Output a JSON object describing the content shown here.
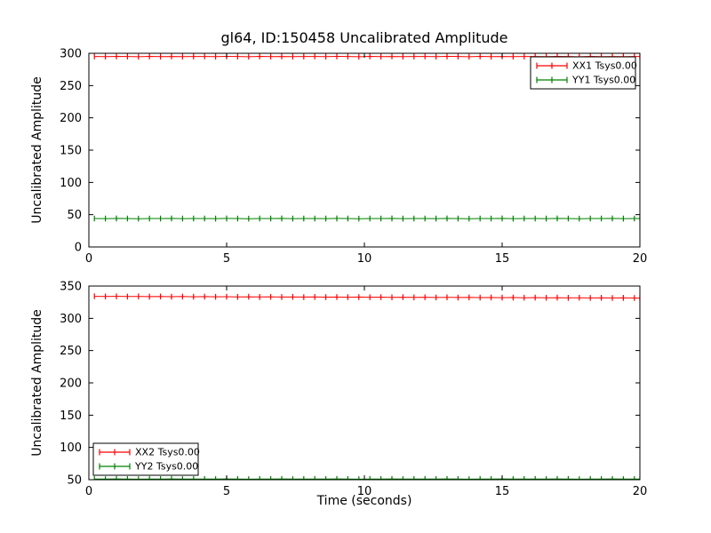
{
  "figure": {
    "title": "gl64, ID:150458 Uncalibrated Amplitude",
    "background": "#ffffff",
    "axis_color": "#000000"
  },
  "chart_data": [
    {
      "type": "line",
      "subplot": "top",
      "title": "gl64, ID:150458 Uncalibrated Amplitude",
      "xlabel": "",
      "ylabel": "Uncalibrated Amplitude",
      "xlim": [
        0,
        20
      ],
      "ylim": [
        0,
        300
      ],
      "xticks": [
        0,
        5,
        10,
        15,
        20
      ],
      "yticks": [
        0,
        50,
        100,
        150,
        200,
        250,
        300
      ],
      "grid": false,
      "error_bars": true,
      "yerr": 4.5,
      "legend_position": "upper-right",
      "x": [
        0.2,
        0.6,
        1.0,
        1.4,
        1.8,
        2.2,
        2.6,
        3.0,
        3.4,
        3.8,
        4.2,
        4.6,
        5.0,
        5.4,
        5.8,
        6.2,
        6.6,
        7.0,
        7.4,
        7.8,
        8.2,
        8.6,
        9.0,
        9.4,
        9.8,
        10.2,
        10.6,
        11.0,
        11.4,
        11.8,
        12.2,
        12.6,
        13.0,
        13.4,
        13.8,
        14.2,
        14.6,
        15.0,
        15.4,
        15.8,
        16.2,
        16.6,
        17.0,
        17.4,
        17.8,
        18.2,
        18.6,
        19.0,
        19.4,
        19.8,
        20.0
      ],
      "series": [
        {
          "name": "XX1 Tsys0.00",
          "color": "#ff0000",
          "values": [
            295.1,
            294.8,
            295.2,
            295.0,
            294.7,
            295.2,
            294.9,
            295.1,
            294.8,
            295.0,
            295.1,
            294.8,
            295.2,
            295.0,
            294.7,
            295.2,
            294.9,
            295.1,
            294.8,
            295.0,
            295.1,
            294.8,
            295.2,
            295.0,
            294.7,
            295.2,
            294.9,
            295.1,
            294.8,
            295.0,
            295.1,
            294.8,
            295.2,
            295.0,
            294.7,
            295.2,
            294.9,
            295.1,
            294.8,
            295.0,
            295.1,
            294.8,
            295.2,
            295.0,
            294.7,
            295.2,
            294.9,
            295.1,
            294.8,
            295.0,
            295.0
          ]
        },
        {
          "name": "YY1 Tsys0.00",
          "color": "#008000",
          "values": [
            44.1,
            43.9,
            44.2,
            44.0,
            43.8,
            44.1,
            44.0,
            44.2,
            43.9,
            44.0,
            44.1,
            43.9,
            44.2,
            44.0,
            43.8,
            44.1,
            44.0,
            44.2,
            43.9,
            44.0,
            44.1,
            43.9,
            44.2,
            44.0,
            43.8,
            44.1,
            44.0,
            44.2,
            43.9,
            44.0,
            44.1,
            43.9,
            44.2,
            44.0,
            43.8,
            44.1,
            44.0,
            44.2,
            43.9,
            44.0,
            44.1,
            43.9,
            44.2,
            44.0,
            43.8,
            44.1,
            44.0,
            44.2,
            43.9,
            44.0,
            44.0
          ]
        }
      ]
    },
    {
      "type": "line",
      "subplot": "bottom",
      "title": "",
      "xlabel": "Time (seconds)",
      "ylabel": "Uncalibrated Amplitude",
      "xlim": [
        0,
        20
      ],
      "ylim": [
        50,
        350
      ],
      "xticks": [
        0,
        5,
        10,
        15,
        20
      ],
      "yticks": [
        50,
        100,
        150,
        200,
        250,
        300,
        350
      ],
      "grid": false,
      "error_bars": true,
      "yerr": 4.5,
      "legend_position": "lower-left",
      "x": [
        0.2,
        0.6,
        1.0,
        1.4,
        1.8,
        2.2,
        2.6,
        3.0,
        3.4,
        3.8,
        4.2,
        4.6,
        5.0,
        5.4,
        5.8,
        6.2,
        6.6,
        7.0,
        7.4,
        7.8,
        8.2,
        8.6,
        9.0,
        9.4,
        9.8,
        10.2,
        10.6,
        11.0,
        11.4,
        11.8,
        12.2,
        12.6,
        13.0,
        13.4,
        13.8,
        14.2,
        14.6,
        15.0,
        15.4,
        15.8,
        16.2,
        16.6,
        17.0,
        17.4,
        17.8,
        18.2,
        18.6,
        19.0,
        19.4,
        19.8,
        20.0
      ],
      "series": [
        {
          "name": "XX2 Tsys0.00",
          "color": "#ff0000",
          "values": [
            334.1,
            333.8,
            334.0,
            333.7,
            333.9,
            333.6,
            333.8,
            333.5,
            333.7,
            333.4,
            333.6,
            333.3,
            333.5,
            333.2,
            333.4,
            333.1,
            333.3,
            333.0,
            333.2,
            332.9,
            333.1,
            332.8,
            333.0,
            332.7,
            332.9,
            332.6,
            332.8,
            332.5,
            332.7,
            332.4,
            332.6,
            332.3,
            332.5,
            332.2,
            332.4,
            332.1,
            332.3,
            332.0,
            332.2,
            331.9,
            332.1,
            331.8,
            332.0,
            331.7,
            331.9,
            331.6,
            331.8,
            331.5,
            331.7,
            331.4,
            331.3
          ]
        },
        {
          "name": "YY2 Tsys0.00",
          "color": "#008000",
          "values": [
            51.1,
            50.9,
            51.2,
            51.0,
            50.8,
            51.1,
            51.0,
            51.2,
            50.9,
            51.0,
            51.1,
            50.9,
            51.2,
            51.0,
            50.8,
            51.1,
            51.0,
            51.2,
            50.9,
            51.0,
            51.1,
            50.9,
            51.2,
            51.0,
            50.8,
            51.1,
            51.0,
            51.2,
            50.9,
            51.0,
            51.1,
            50.9,
            51.2,
            51.0,
            50.8,
            51.1,
            51.0,
            51.2,
            50.9,
            51.0,
            51.1,
            50.9,
            51.2,
            51.0,
            50.8,
            51.1,
            51.0,
            51.2,
            50.9,
            51.0,
            51.0
          ]
        }
      ]
    }
  ]
}
